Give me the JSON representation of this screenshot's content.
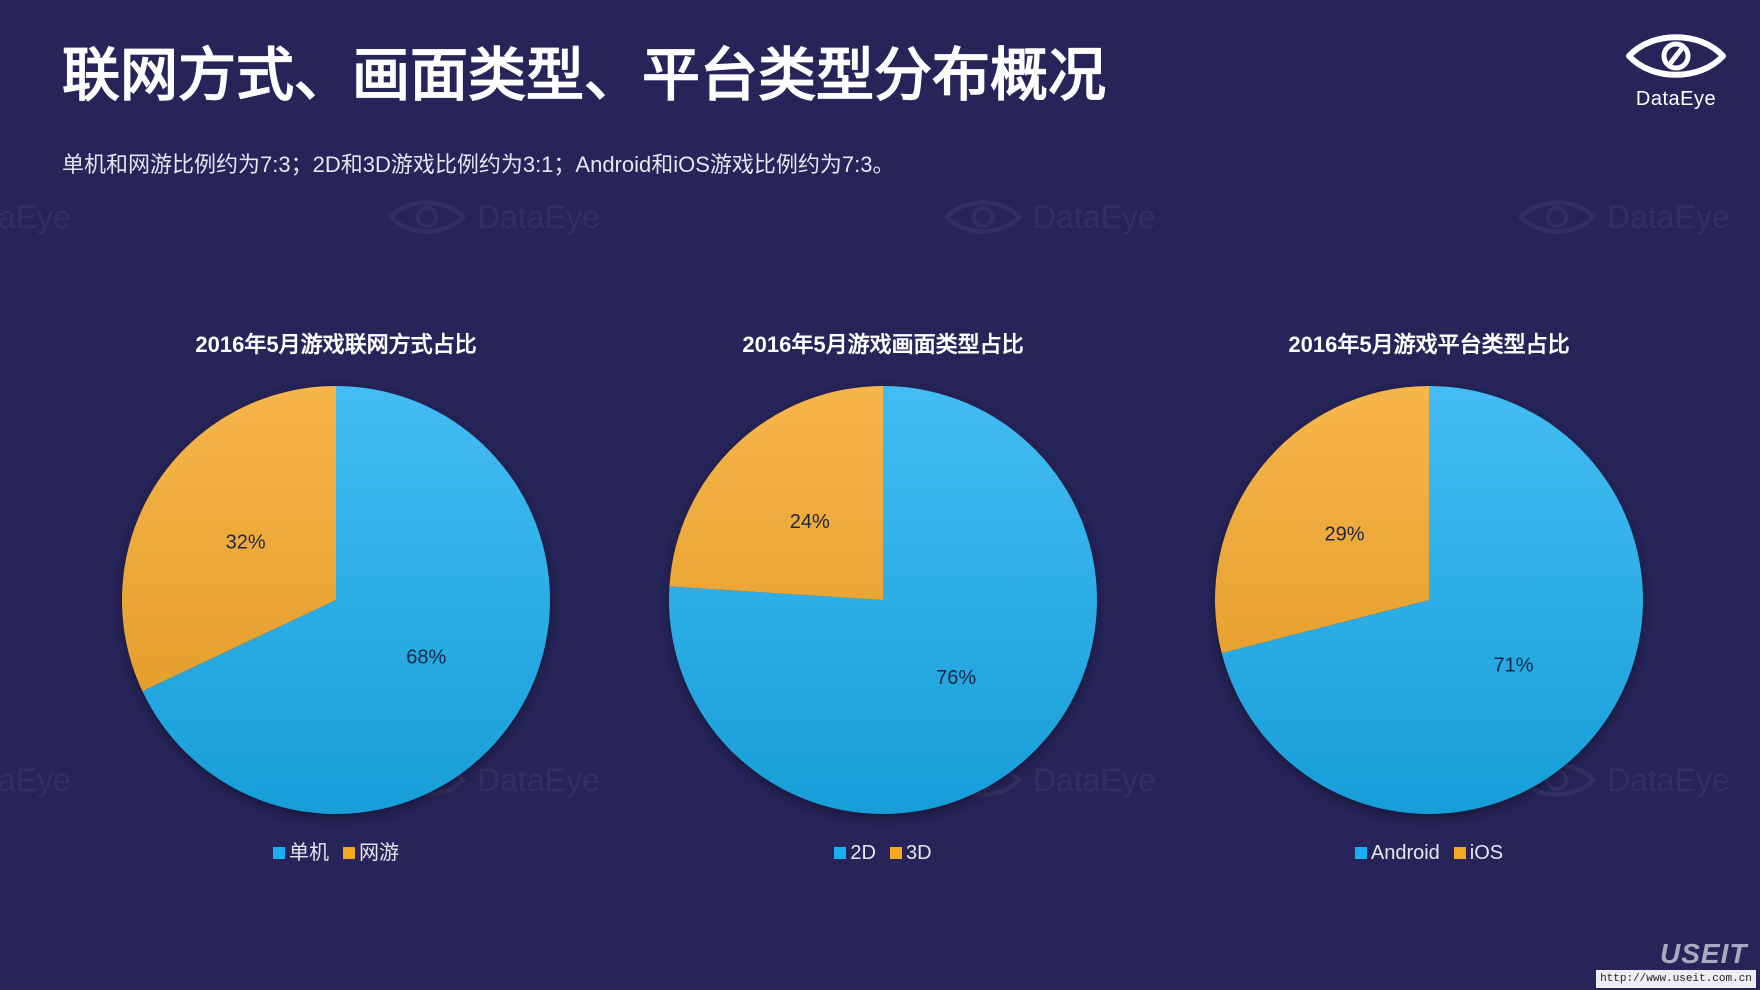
{
  "header": {
    "title": "联网方式、画面类型、平台类型分布概况",
    "subtitle": "单机和网游比例约为7:3；2D和3D游戏比例约为3:1；Android和iOS游戏比例约为7:3。",
    "logo_text": "DataEye",
    "logo_icon": "dataeye-eye-logo"
  },
  "watermark": {
    "text": "DataEye",
    "icon": "dataeye-eye-logo"
  },
  "footer": {
    "brand": "USEIT",
    "url": "http://www.useit.com.cn"
  },
  "colors": {
    "background": "#262458",
    "blue": "#1aaff0",
    "orange": "#f5a623",
    "text": "#ffffff"
  },
  "chart_data": [
    {
      "type": "pie",
      "title": "2016年5月游戏联网方式占比",
      "categories": [
        "单机",
        "网游"
      ],
      "values": [
        68,
        32
      ],
      "data_labels": [
        "68%",
        "32%"
      ],
      "colors": [
        "#1aaff0",
        "#f5a623"
      ],
      "legend": "bottom"
    },
    {
      "type": "pie",
      "title": "2016年5月游戏画面类型占比",
      "categories": [
        "2D",
        "3D"
      ],
      "values": [
        76,
        24
      ],
      "data_labels": [
        "76%",
        "24%"
      ],
      "colors": [
        "#1aaff0",
        "#f5a623"
      ],
      "legend": "bottom"
    },
    {
      "type": "pie",
      "title": "2016年5月游戏平台类型占比",
      "categories": [
        "Android",
        "iOS"
      ],
      "values": [
        71,
        29
      ],
      "data_labels": [
        "71%",
        "29%"
      ],
      "colors": [
        "#1aaff0",
        "#f5a623"
      ],
      "legend": "bottom"
    }
  ]
}
